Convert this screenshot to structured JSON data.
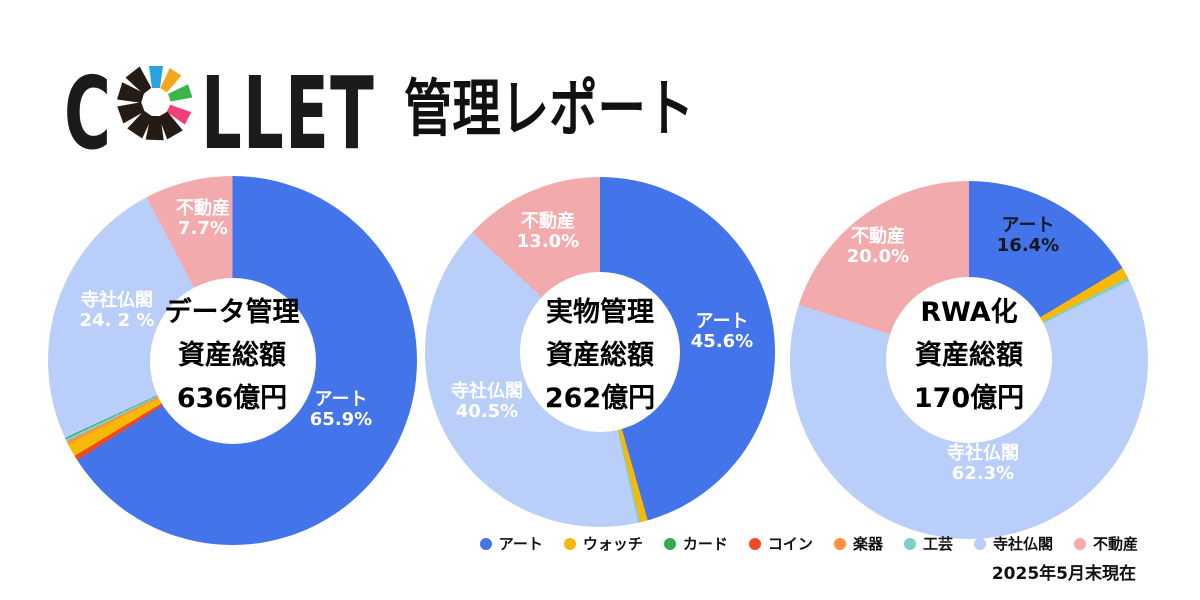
{
  "report_title": {
    "brand_prefix": "C",
    "brand_suffix": "LLET",
    "title_text": "管理レポート"
  },
  "date_note": "2025年5月末現在",
  "palette": {
    "art": "#4374E9",
    "watch": "#F9B805",
    "card": "#34A853",
    "coin": "#EF4A24",
    "instrument": "#FA9142",
    "craft": "#7FCFCB",
    "temple": "#B9CFF9",
    "realestate": "#F3AAAC"
  },
  "logo": {
    "letter_color": "#1B1B1B",
    "spokes": [
      "sky",
      "amber",
      "green",
      "pink",
      "dark",
      "dark",
      "dark",
      "dark",
      "dark",
      "dark"
    ],
    "spoke_colors": {
      "sky": "#2AA2DE",
      "amber": "#F5A61F",
      "green": "#3BB44A",
      "pink": "#F0407A",
      "dark": "#261A15"
    }
  },
  "legend": {
    "items": [
      {
        "key": "art",
        "label": "アート"
      },
      {
        "key": "watch",
        "label": "ウォッチ"
      },
      {
        "key": "card",
        "label": "カード"
      },
      {
        "key": "coin",
        "label": "コイン"
      },
      {
        "key": "instrument",
        "label": "楽器"
      },
      {
        "key": "craft",
        "label": "工芸"
      },
      {
        "key": "temple",
        "label": "寺社仏閣"
      },
      {
        "key": "realestate",
        "label": "不動産"
      }
    ]
  },
  "chart_data": [
    {
      "type": "pie",
      "donut": true,
      "title": "データ管理 資産総額 636億円",
      "center_text": [
        "データ管理",
        "資産総額",
        "636億円"
      ],
      "legend_position": "bottom-shared",
      "slices": [
        {
          "label": "アート",
          "key": "art",
          "value": 65.9
        },
        {
          "label": "コイン",
          "key": "coin",
          "value": 0.45
        },
        {
          "label": "ウォッチ",
          "key": "watch",
          "value": 1.15
        },
        {
          "label": "楽器",
          "key": "instrument",
          "value": 0.25
        },
        {
          "label": "工芸",
          "key": "craft",
          "value": 0.25
        },
        {
          "label": "カード",
          "key": "card",
          "value": 0.1
        },
        {
          "label": "寺社仏閣",
          "key": "temple",
          "value": 24.2
        },
        {
          "label": "不動産",
          "key": "realestate",
          "value": 7.7
        }
      ],
      "callouts": [
        {
          "name": "アート",
          "pct": "65.9%"
        },
        {
          "name": "寺社仏閣",
          "pct": "24. 2 %"
        },
        {
          "name": "不動産",
          "pct": "7.7%"
        }
      ]
    },
    {
      "type": "pie",
      "donut": true,
      "title": "実物管理 資産総額 262億円",
      "center_text": [
        "実物管理",
        "資産総額",
        "262億円"
      ],
      "legend_position": "bottom-shared",
      "slices": [
        {
          "label": "アート",
          "key": "art",
          "value": 45.6
        },
        {
          "label": "ウォッチ",
          "key": "watch",
          "value": 0.7
        },
        {
          "label": "工芸",
          "key": "craft",
          "value": 0.2
        },
        {
          "label": "寺社仏閣",
          "key": "temple",
          "value": 40.5
        },
        {
          "label": "不動産",
          "key": "realestate",
          "value": 13.0
        }
      ],
      "callouts": [
        {
          "name": "アート",
          "pct": "45.6%"
        },
        {
          "name": "寺社仏閣",
          "pct": "40.5%"
        },
        {
          "name": "不動産",
          "pct": "13.0%"
        }
      ]
    },
    {
      "type": "pie",
      "donut": true,
      "title": "RWA化 資産総額 170億円",
      "center_text": [
        "RWA化",
        "資産総額",
        "170億円"
      ],
      "legend_position": "bottom-shared",
      "slices": [
        {
          "label": "アート",
          "key": "art",
          "value": 16.4
        },
        {
          "label": "ウォッチ",
          "key": "watch",
          "value": 1.0
        },
        {
          "label": "工芸",
          "key": "craft",
          "value": 0.3
        },
        {
          "label": "寺社仏閣",
          "key": "temple",
          "value": 62.3
        },
        {
          "label": "不動産",
          "key": "realestate",
          "value": 20.0
        }
      ],
      "callouts": [
        {
          "name": "アート",
          "pct": "16.4%"
        },
        {
          "name": "寺社仏閣",
          "pct": "62.3%"
        },
        {
          "name": "不動産",
          "pct": "20.0%"
        }
      ]
    }
  ]
}
